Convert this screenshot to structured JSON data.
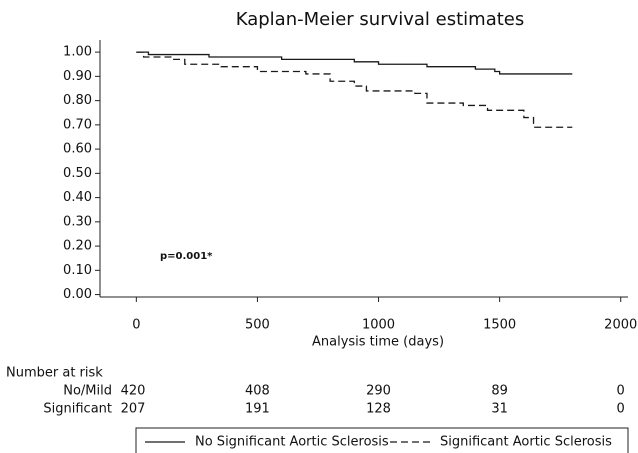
{
  "chart_data": {
    "type": "step",
    "title": "Kaplan-Meier survival estimates",
    "x_label": "Analysis time (days)",
    "annotation": "p=0.001*",
    "xlim": [
      -150,
      2030
    ],
    "ylim": [
      -0.01,
      1.05
    ],
    "xticks": [
      0,
      500,
      1000,
      1500,
      2000
    ],
    "yticks": [
      {
        "value": 0,
        "label": "0.00"
      },
      {
        "value": 0.1,
        "label": "0.10"
      },
      {
        "value": 0.2,
        "label": "0.20"
      },
      {
        "value": 0.3,
        "label": "0.30"
      },
      {
        "value": 0.4,
        "label": "0.40"
      },
      {
        "value": 0.5,
        "label": "0.50"
      },
      {
        "value": 0.6,
        "label": "0.60"
      },
      {
        "value": 0.7,
        "label": "0.70"
      },
      {
        "value": 0.8,
        "label": "0.80"
      },
      {
        "value": 0.9,
        "label": "0.90"
      },
      {
        "value": 1.0,
        "label": "1.00"
      }
    ],
    "series": [
      {
        "name": "No Significant Aortic Sclerosis",
        "color": "#1a1a1a",
        "line_style": "solid",
        "x": [
          0,
          50,
          300,
          600,
          900,
          1000,
          1200,
          1400,
          1480,
          1500,
          1800
        ],
        "values": [
          1.0,
          0.99,
          0.98,
          0.97,
          0.96,
          0.95,
          0.94,
          0.93,
          0.92,
          0.91,
          0.91
        ]
      },
      {
        "name": "Significant Aortic Sclerosis",
        "color": "#1a1a1a",
        "line_style": "dashed",
        "x": [
          0,
          30,
          150,
          200,
          350,
          500,
          700,
          800,
          900,
          950,
          1150,
          1200,
          1350,
          1450,
          1600,
          1640,
          1800
        ],
        "values": [
          1.0,
          0.98,
          0.97,
          0.95,
          0.94,
          0.92,
          0.91,
          0.88,
          0.86,
          0.84,
          0.83,
          0.79,
          0.78,
          0.76,
          0.73,
          0.69,
          0.69
        ]
      }
    ],
    "risk_table": {
      "title": "Number at risk",
      "rows": [
        {
          "label": "No/Mild",
          "values": [
            420,
            408,
            290,
            89,
            0
          ]
        },
        {
          "label": "Significant",
          "values": [
            207,
            191,
            128,
            31,
            0
          ]
        }
      ]
    }
  }
}
